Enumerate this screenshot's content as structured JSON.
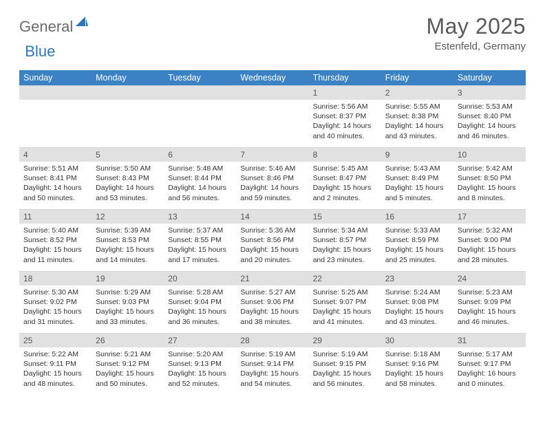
{
  "brand": {
    "part1": "General",
    "part2": "Blue"
  },
  "title": "May 2025",
  "location": "Estenfeld, Germany",
  "colors": {
    "header_bg": "#3b82c4",
    "header_text": "#ffffff",
    "daynum_bg": "#e1e1e1",
    "text": "#333333",
    "brand_gray": "#6a6a6a",
    "brand_blue": "#2f74b5"
  },
  "dayHeaders": [
    "Sunday",
    "Monday",
    "Tuesday",
    "Wednesday",
    "Thursday",
    "Friday",
    "Saturday"
  ],
  "weeks": [
    [
      null,
      null,
      null,
      null,
      {
        "n": "1",
        "sr": "5:56 AM",
        "ss": "8:37 PM",
        "dl": "14 hours and 40 minutes."
      },
      {
        "n": "2",
        "sr": "5:55 AM",
        "ss": "8:38 PM",
        "dl": "14 hours and 43 minutes."
      },
      {
        "n": "3",
        "sr": "5:53 AM",
        "ss": "8:40 PM",
        "dl": "14 hours and 46 minutes."
      }
    ],
    [
      {
        "n": "4",
        "sr": "5:51 AM",
        "ss": "8:41 PM",
        "dl": "14 hours and 50 minutes."
      },
      {
        "n": "5",
        "sr": "5:50 AM",
        "ss": "8:43 PM",
        "dl": "14 hours and 53 minutes."
      },
      {
        "n": "6",
        "sr": "5:48 AM",
        "ss": "8:44 PM",
        "dl": "14 hours and 56 minutes."
      },
      {
        "n": "7",
        "sr": "5:46 AM",
        "ss": "8:46 PM",
        "dl": "14 hours and 59 minutes."
      },
      {
        "n": "8",
        "sr": "5:45 AM",
        "ss": "8:47 PM",
        "dl": "15 hours and 2 minutes."
      },
      {
        "n": "9",
        "sr": "5:43 AM",
        "ss": "8:49 PM",
        "dl": "15 hours and 5 minutes."
      },
      {
        "n": "10",
        "sr": "5:42 AM",
        "ss": "8:50 PM",
        "dl": "15 hours and 8 minutes."
      }
    ],
    [
      {
        "n": "11",
        "sr": "5:40 AM",
        "ss": "8:52 PM",
        "dl": "15 hours and 11 minutes."
      },
      {
        "n": "12",
        "sr": "5:39 AM",
        "ss": "8:53 PM",
        "dl": "15 hours and 14 minutes."
      },
      {
        "n": "13",
        "sr": "5:37 AM",
        "ss": "8:55 PM",
        "dl": "15 hours and 17 minutes."
      },
      {
        "n": "14",
        "sr": "5:36 AM",
        "ss": "8:56 PM",
        "dl": "15 hours and 20 minutes."
      },
      {
        "n": "15",
        "sr": "5:34 AM",
        "ss": "8:57 PM",
        "dl": "15 hours and 23 minutes."
      },
      {
        "n": "16",
        "sr": "5:33 AM",
        "ss": "8:59 PM",
        "dl": "15 hours and 25 minutes."
      },
      {
        "n": "17",
        "sr": "5:32 AM",
        "ss": "9:00 PM",
        "dl": "15 hours and 28 minutes."
      }
    ],
    [
      {
        "n": "18",
        "sr": "5:30 AM",
        "ss": "9:02 PM",
        "dl": "15 hours and 31 minutes."
      },
      {
        "n": "19",
        "sr": "5:29 AM",
        "ss": "9:03 PM",
        "dl": "15 hours and 33 minutes."
      },
      {
        "n": "20",
        "sr": "5:28 AM",
        "ss": "9:04 PM",
        "dl": "15 hours and 36 minutes."
      },
      {
        "n": "21",
        "sr": "5:27 AM",
        "ss": "9:06 PM",
        "dl": "15 hours and 38 minutes."
      },
      {
        "n": "22",
        "sr": "5:25 AM",
        "ss": "9:07 PM",
        "dl": "15 hours and 41 minutes."
      },
      {
        "n": "23",
        "sr": "5:24 AM",
        "ss": "9:08 PM",
        "dl": "15 hours and 43 minutes."
      },
      {
        "n": "24",
        "sr": "5:23 AM",
        "ss": "9:09 PM",
        "dl": "15 hours and 46 minutes."
      }
    ],
    [
      {
        "n": "25",
        "sr": "5:22 AM",
        "ss": "9:11 PM",
        "dl": "15 hours and 48 minutes."
      },
      {
        "n": "26",
        "sr": "5:21 AM",
        "ss": "9:12 PM",
        "dl": "15 hours and 50 minutes."
      },
      {
        "n": "27",
        "sr": "5:20 AM",
        "ss": "9:13 PM",
        "dl": "15 hours and 52 minutes."
      },
      {
        "n": "28",
        "sr": "5:19 AM",
        "ss": "9:14 PM",
        "dl": "15 hours and 54 minutes."
      },
      {
        "n": "29",
        "sr": "5:19 AM",
        "ss": "9:15 PM",
        "dl": "15 hours and 56 minutes."
      },
      {
        "n": "30",
        "sr": "5:18 AM",
        "ss": "9:16 PM",
        "dl": "15 hours and 58 minutes."
      },
      {
        "n": "31",
        "sr": "5:17 AM",
        "ss": "9:17 PM",
        "dl": "16 hours and 0 minutes."
      }
    ]
  ],
  "labels": {
    "sunrise": "Sunrise:",
    "sunset": "Sunset:",
    "daylight": "Daylight:"
  }
}
